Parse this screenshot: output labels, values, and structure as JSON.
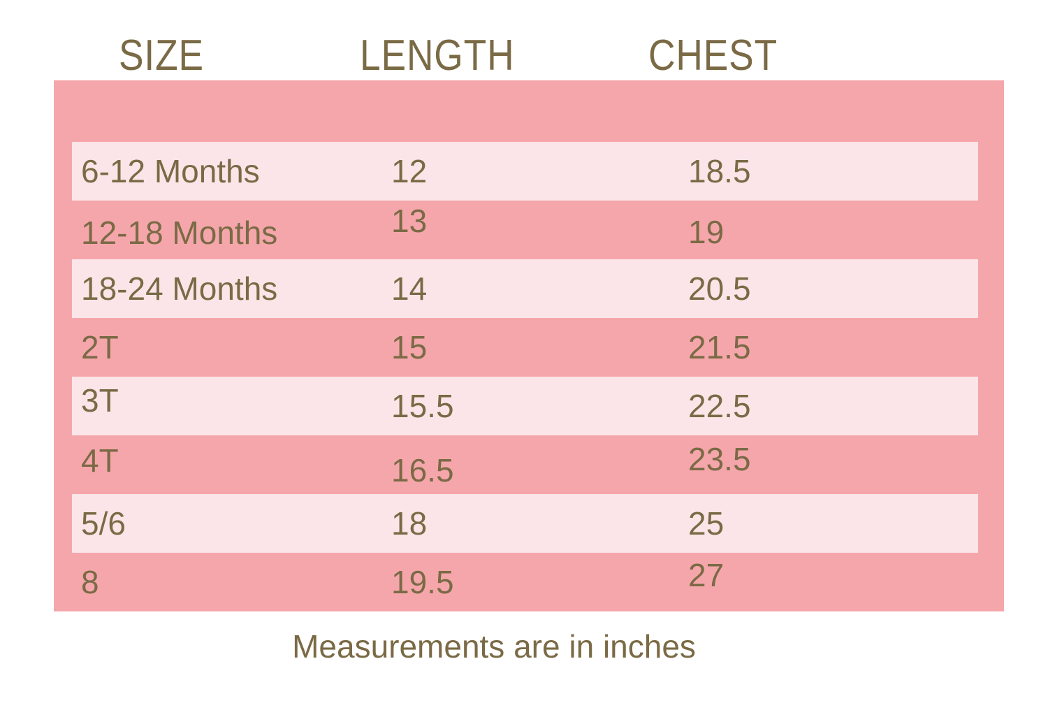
{
  "chart_data": {
    "type": "table",
    "title": "",
    "columns": [
      "SIZE",
      "LENGTH",
      "CHEST"
    ],
    "rows": [
      [
        "6-12 Months",
        "12",
        "18.5"
      ],
      [
        "12-18 Months",
        "13",
        "19"
      ],
      [
        "18-24 Months",
        "14",
        "20.5"
      ],
      [
        "2T",
        "15",
        "21.5"
      ],
      [
        "3T",
        "15.5",
        "22.5"
      ],
      [
        "4T",
        "16.5",
        "23.5"
      ],
      [
        "5/6",
        "18",
        "25"
      ],
      [
        "8",
        "19.5",
        "27"
      ]
    ],
    "note": "Measurements are in inches",
    "layout_hints": {
      "striped": true,
      "stripe_pattern": "odd rows light band, even rows panel color"
    }
  },
  "colors": {
    "panel": "#f5a6ab",
    "band": "#fce5e8",
    "text": "#7a6a45",
    "background": "#ffffff"
  }
}
